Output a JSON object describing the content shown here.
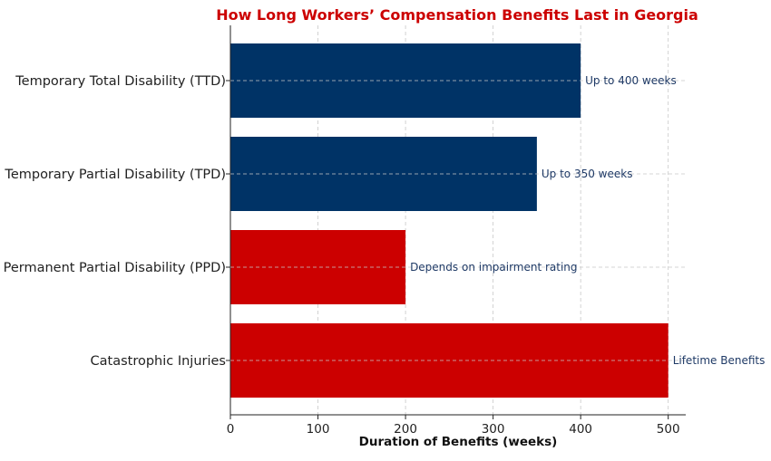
{
  "chart_data": {
    "type": "bar",
    "orientation": "horizontal",
    "title": "How Long Workers’ Compensation Benefits Last in Georgia",
    "xlabel": "Duration of Benefits (weeks)",
    "ylabel": "",
    "categories": [
      "Temporary Total Disability (TTD)",
      "Temporary Partial Disability (TPD)",
      "Permanent Partial Disability (PPD)",
      "Catastrophic Injuries"
    ],
    "values": [
      400,
      350,
      200,
      500
    ],
    "data_labels": [
      "Up to 400 weeks",
      "Up to 350 weeks",
      "Depends on impairment rating",
      "Lifetime Benefits"
    ],
    "xlim": [
      0,
      520
    ],
    "xticks": [
      0,
      100,
      200,
      300,
      400,
      500
    ],
    "grid": true,
    "legend": "none",
    "colors": {
      "title": "#cc0000",
      "temporary_bars": "#003366",
      "permanent_bars": "#cc0000",
      "data_label_text": "#1f3a66"
    },
    "bar_colors": [
      "#003366",
      "#003366",
      "#cc0000",
      "#cc0000"
    ]
  }
}
